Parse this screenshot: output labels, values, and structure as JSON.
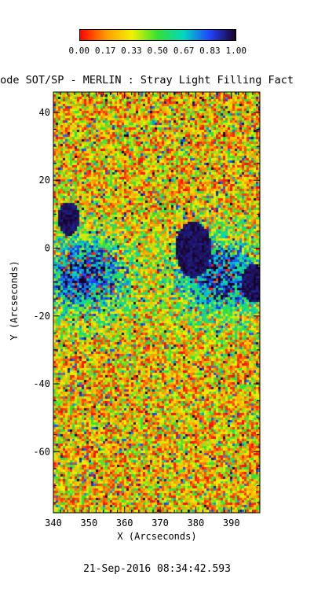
{
  "colorbar": {
    "ticks": [
      "0.00",
      "0.17",
      "0.33",
      "0.50",
      "0.67",
      "0.83",
      "1.00"
    ],
    "stops": [
      "#ff0000",
      "#ff9a00",
      "#f2f200",
      "#33e033",
      "#00d8c0",
      "#2244ff",
      "#1a0024"
    ]
  },
  "chart_data": {
    "type": "heatmap",
    "title": "mode SOT/SP - MERLIN : Stray Light Filling Fact",
    "xlabel": "X (Arcseconds)",
    "ylabel": "Y (Arcseconds)",
    "xlim": [
      340,
      398
    ],
    "ylim": [
      -78,
      46
    ],
    "xticks": [
      340,
      350,
      360,
      370,
      380,
      390
    ],
    "yticks": [
      40,
      20,
      0,
      -20,
      -40,
      -60
    ],
    "value_range": [
      0.0,
      1.0
    ],
    "colorscale": "rainbow (red 0.00 to dark purple 1.00)",
    "features": {
      "pores": [
        {
          "x": 344,
          "y": 9,
          "r": 3
        },
        {
          "x": 379,
          "y": 0,
          "r": 5
        },
        {
          "x": 396,
          "y": -10,
          "r": 3.5
        }
      ],
      "note": "high filling factor (blue/purple) band around y in [-25, 10]; low values (yellow/red) elsewhere"
    }
  },
  "footer": {
    "timestamp": "21-Sep-2016 08:34:42.593"
  }
}
